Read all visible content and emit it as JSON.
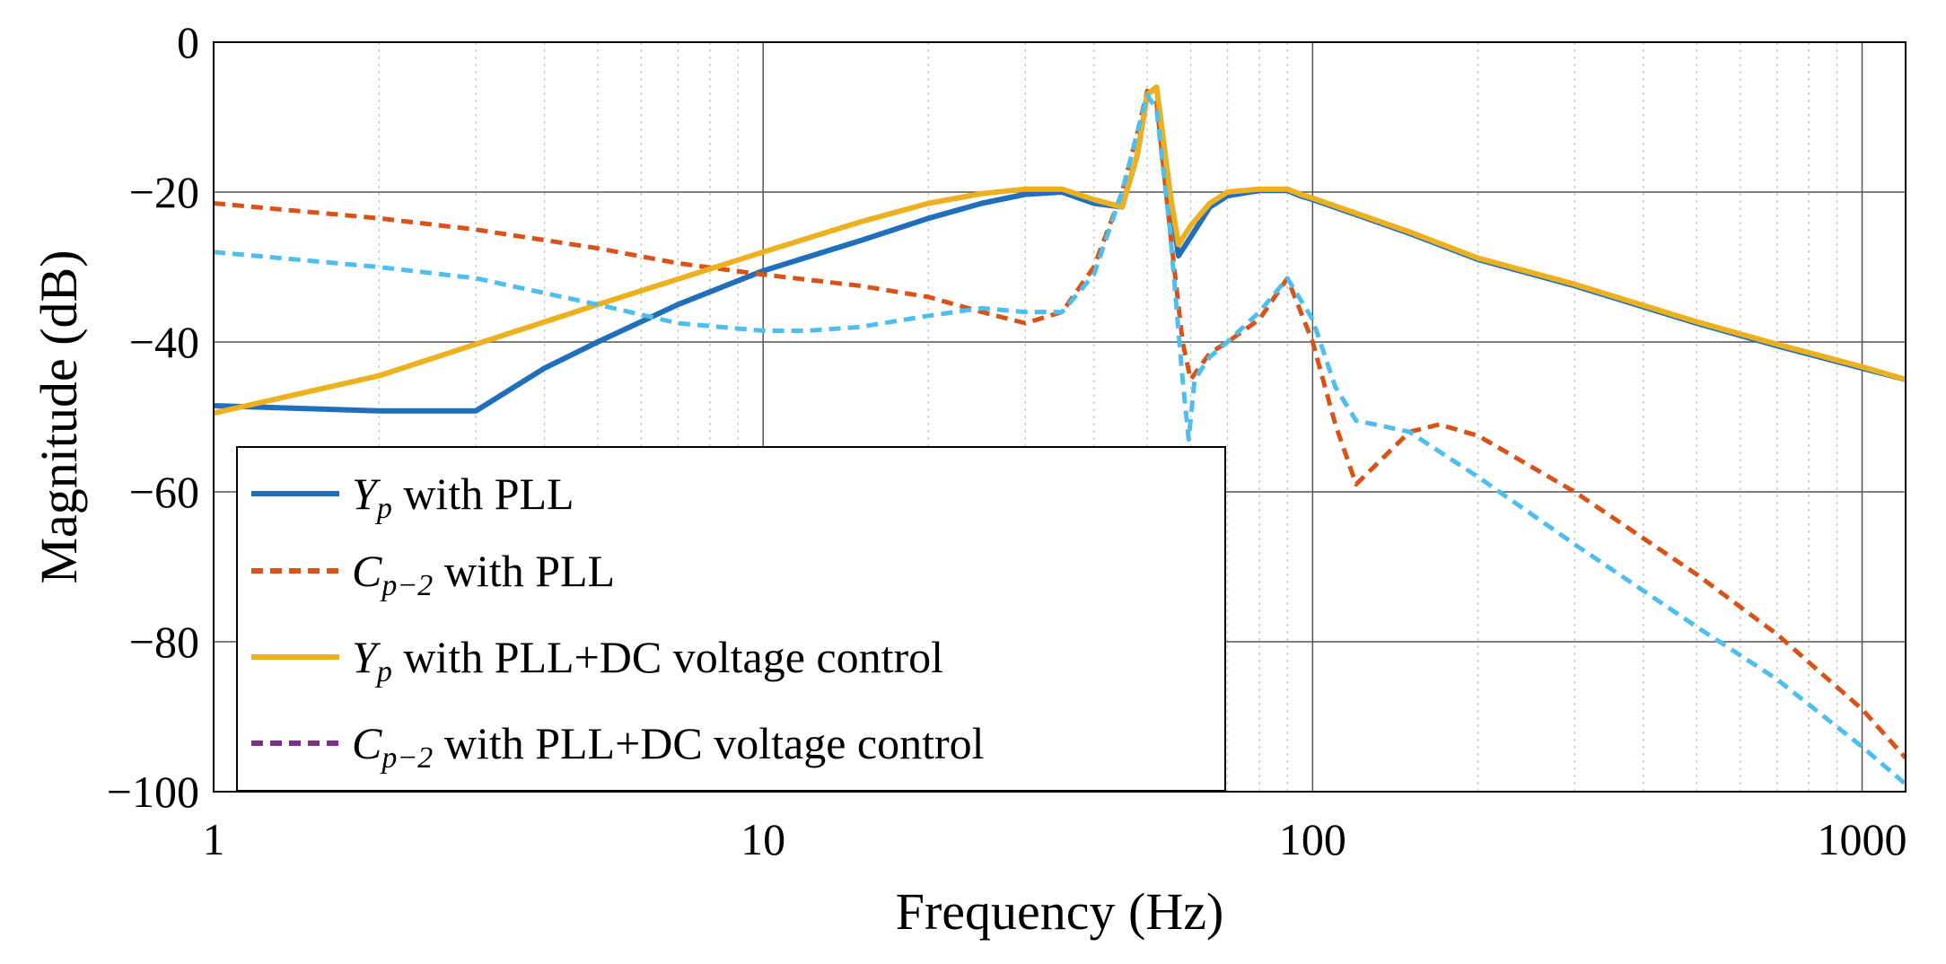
{
  "chart_data": {
    "type": "line",
    "title": "",
    "xlabel": "Frequency (Hz)",
    "ylabel": "Magnitude (dB)",
    "xscale": "log",
    "xlim": [
      1,
      1200
    ],
    "ylim": [
      -100,
      0
    ],
    "xticks": [
      1,
      10,
      100,
      1000
    ],
    "xtick_labels": [
      "1",
      "10",
      "100",
      "1000"
    ],
    "yticks": [
      0,
      -20,
      -40,
      -60,
      -80,
      -100
    ],
    "ytick_labels": [
      "0",
      "−20",
      "−40",
      "−60",
      "−80",
      "−100"
    ],
    "grid": true,
    "legend_position": "bottom-left",
    "series": [
      {
        "name": "Y_p with PLL",
        "legend_label": {
          "sym": "Y",
          "sub": "p",
          "rest": " with PLL"
        },
        "color": "#1f6fbd",
        "style": "solid",
        "x": [
          1,
          2,
          3,
          4,
          5,
          7,
          10,
          15,
          20,
          25,
          30,
          35,
          40,
          45,
          48,
          50,
          52,
          55,
          57,
          60,
          65,
          70,
          80,
          90,
          95,
          100,
          150,
          200,
          300,
          500,
          700,
          1000,
          1200
        ],
        "y": [
          -48.5,
          -49.2,
          -49.2,
          -43.5,
          -40,
          -35,
          -30.5,
          -26.5,
          -23.5,
          -21.5,
          -20.3,
          -20,
          -21.5,
          -22,
          -15,
          -7,
          -6,
          -20,
          -28.5,
          -26,
          -22,
          -20.5,
          -19.8,
          -19.8,
          -20.5,
          -21,
          -25.5,
          -29,
          -32.5,
          -37.5,
          -40.5,
          -43.5,
          -45
        ]
      },
      {
        "name": "C_{p-2} with PLL",
        "legend_label": {
          "sym": "C",
          "sub": "p−2",
          "rest": " with PLL"
        },
        "color": "#d95319",
        "style": "dashed",
        "x": [
          1,
          2,
          3,
          5,
          7,
          10,
          15,
          20,
          25,
          30,
          35,
          40,
          45,
          48,
          50,
          52,
          55,
          58,
          60,
          65,
          70,
          80,
          90,
          100,
          110,
          120,
          130,
          150,
          170,
          200,
          300,
          500,
          700,
          1000,
          1200
        ],
        "y": [
          -21.5,
          -23.5,
          -25,
          -27.5,
          -29.5,
          -31,
          -32.5,
          -34,
          -36,
          -37.5,
          -36,
          -30,
          -20,
          -12,
          -6.5,
          -8,
          -25,
          -40,
          -45,
          -41.5,
          -40,
          -37,
          -31.5,
          -40,
          -51,
          -59,
          -56.5,
          -52,
          -51,
          -52.5,
          -60,
          -71,
          -79,
          -89,
          -95.5
        ]
      },
      {
        "name": "Y_p with PLL+DC voltage control",
        "legend_label": {
          "sym": "Y",
          "sub": "p",
          "rest": " with PLL+DC voltage control"
        },
        "color": "#edb120",
        "style": "solid",
        "x": [
          1,
          2,
          5,
          10,
          15,
          20,
          25,
          30,
          35,
          40,
          45,
          48,
          50,
          52,
          55,
          57,
          60,
          65,
          70,
          80,
          90,
          95,
          100,
          150,
          200,
          300,
          500,
          700,
          1000,
          1200
        ],
        "y": [
          -49.5,
          -44.5,
          -35,
          -28,
          -24,
          -21.5,
          -20.2,
          -19.6,
          -19.6,
          -21,
          -22,
          -15,
          -7,
          -6,
          -20,
          -27,
          -24.5,
          -21.5,
          -20,
          -19.6,
          -19.6,
          -20.3,
          -20.8,
          -25.3,
          -28.8,
          -32.3,
          -37.3,
          -40.3,
          -43.3,
          -45
        ]
      },
      {
        "name": "C_{p-2} with PLL+DC voltage control",
        "legend_label": {
          "sym": "C",
          "sub": "p−2",
          "rest": " with PLL+DC voltage control"
        },
        "color": "#4dbeee",
        "legend_color": "#7e2f8e",
        "style": "dashed",
        "x": [
          1,
          2,
          3,
          5,
          7,
          10,
          12,
          15,
          20,
          25,
          30,
          35,
          40,
          45,
          48,
          50,
          52,
          55,
          58,
          59.5,
          61,
          65,
          70,
          80,
          90,
          100,
          110,
          120,
          130,
          150,
          200,
          300,
          500,
          700,
          1000,
          1200
        ],
        "y": [
          -28,
          -30,
          -31.5,
          -35,
          -37.5,
          -38.5,
          -38.5,
          -38,
          -36.5,
          -35.5,
          -36,
          -36,
          -31,
          -20,
          -12,
          -7,
          -9,
          -25,
          -45,
          -53,
          -45,
          -42,
          -40,
          -36,
          -31.5,
          -37,
          -46,
          -50.5,
          -51,
          -52,
          -58,
          -67,
          -78,
          -85,
          -94,
          -99
        ]
      }
    ]
  }
}
